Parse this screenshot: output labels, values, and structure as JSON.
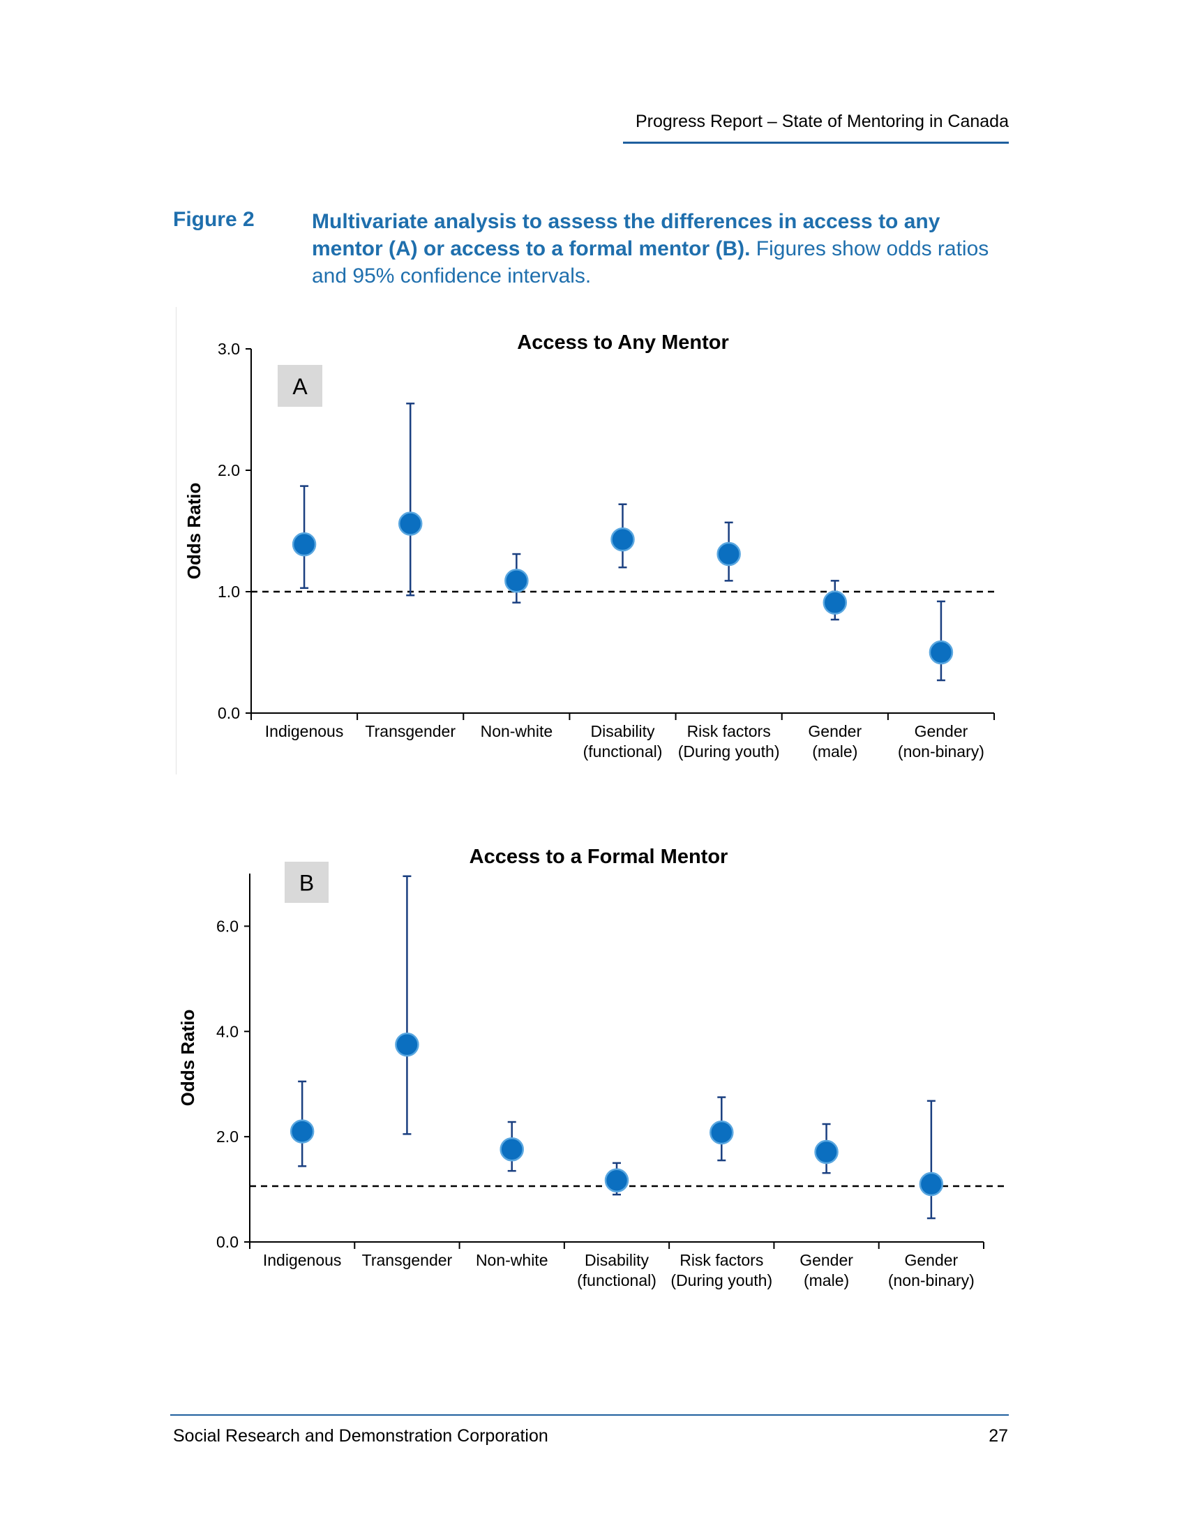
{
  "page": {
    "running_header": "Progress Report – State of Mentoring in Canada",
    "footer_left": "Social Research and Demonstration Corporation",
    "page_number": "27"
  },
  "figure": {
    "label": "Figure 2",
    "caption_bold": "Multivariate analysis to assess the differences in access to any mentor (A) or access to a formal mentor (B).",
    "caption_rest": " Figures show odds ratios and 95% confidence intervals."
  },
  "colors": {
    "accent_blue": "#1f6fad",
    "marker_fill": "#0b6fc0",
    "marker_stroke": "#5aa7e0",
    "whisker": "#1a3f80",
    "panel_box": "#d9d9d9"
  },
  "chart_data": [
    {
      "type": "scatter",
      "panel": "A",
      "title": "Access to Any Mentor",
      "ylabel": "Odds Ratio",
      "ylim": [
        0,
        3
      ],
      "yticks": [
        "0.0",
        "1.0",
        "2.0",
        "3.0"
      ],
      "reference_line": 1.0,
      "categories": [
        [
          "Indigenous"
        ],
        [
          "Transgender"
        ],
        [
          "Non-white"
        ],
        [
          "Disability",
          "(functional)"
        ],
        [
          "Risk factors",
          "(During youth)"
        ],
        [
          "Gender",
          "(male)"
        ],
        [
          "Gender",
          "(non-binary)"
        ]
      ],
      "values": [
        1.39,
        1.56,
        1.09,
        1.43,
        1.31,
        0.91,
        0.5
      ],
      "ci_low": [
        1.03,
        0.97,
        0.91,
        1.2,
        1.09,
        0.77,
        0.27
      ],
      "ci_high": [
        1.87,
        2.55,
        1.31,
        1.72,
        1.57,
        1.09,
        0.92
      ]
    },
    {
      "type": "scatter",
      "panel": "B",
      "title": "Access to a Formal Mentor",
      "ylabel": "Odds Ratio",
      "ylim": [
        0,
        7
      ],
      "yticks": [
        "0.0",
        "2.0",
        "4.0",
        "6.0"
      ],
      "reference_line": 1.06,
      "categories": [
        [
          "Indigenous"
        ],
        [
          "Transgender"
        ],
        [
          "Non-white"
        ],
        [
          "Disability",
          "(functional)"
        ],
        [
          "Risk factors",
          "(During youth)"
        ],
        [
          "Gender",
          "(male)"
        ],
        [
          "Gender",
          "(non-binary)"
        ]
      ],
      "values": [
        2.1,
        3.75,
        1.76,
        1.17,
        2.08,
        1.71,
        1.1
      ],
      "ci_low": [
        1.44,
        2.05,
        1.35,
        0.9,
        1.55,
        1.31,
        0.45
      ],
      "ci_high": [
        3.05,
        6.95,
        2.28,
        1.5,
        2.75,
        2.24,
        2.68
      ]
    }
  ]
}
